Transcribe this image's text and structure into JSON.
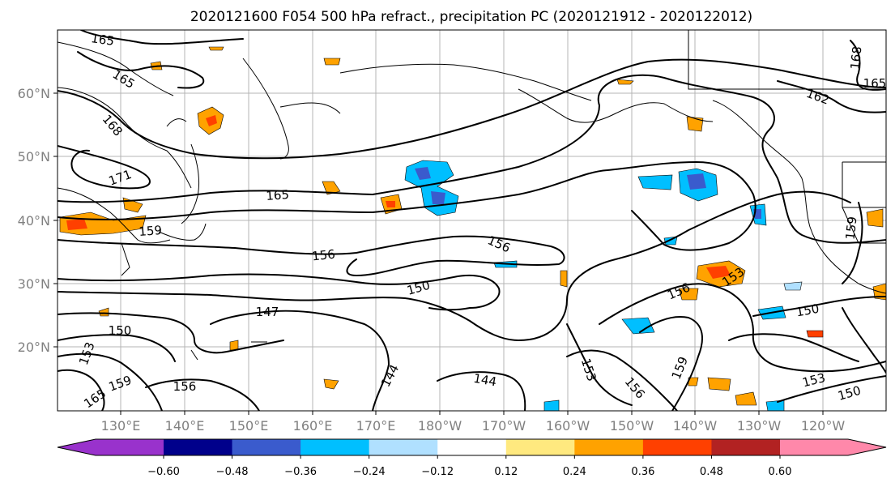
{
  "title": "2020121600 F054 500 hPa refract., precipitation PC (2020121912 - 2020122012)",
  "lat_labels": [
    "60°N",
    "50°N",
    "40°N",
    "30°N",
    "20°N"
  ],
  "lon_labels": [
    "130°E",
    "140°E",
    "150°E",
    "160°E",
    "170°E",
    "180°W",
    "170°W",
    "160°W",
    "150°W",
    "140°W",
    "130°W",
    "120°W"
  ],
  "contour_labels": [
    "165",
    "165",
    "168",
    "171",
    "165",
    "159",
    "156",
    "156",
    "150",
    "147",
    "150",
    "153",
    "159",
    "165",
    "156",
    "144",
    "144",
    "153",
    "156",
    "159",
    "156",
    "153",
    "150",
    "153",
    "150",
    "159",
    "162",
    "168",
    "165"
  ],
  "colorbar": {
    "tick_labels": [
      "−0.60",
      "−0.48",
      "−0.36",
      "−0.24",
      "−0.12",
      "0.12",
      "0.24",
      "0.36",
      "0.48",
      "0.60"
    ],
    "colors": [
      "#9932cc",
      "#00008b",
      "#3a5bcd",
      "#00bfff",
      "#b0e0ff",
      "#ffffff",
      "#ffe97f",
      "#ffa200",
      "#ff4000",
      "#b22222",
      "#ff88aa"
    ]
  }
}
